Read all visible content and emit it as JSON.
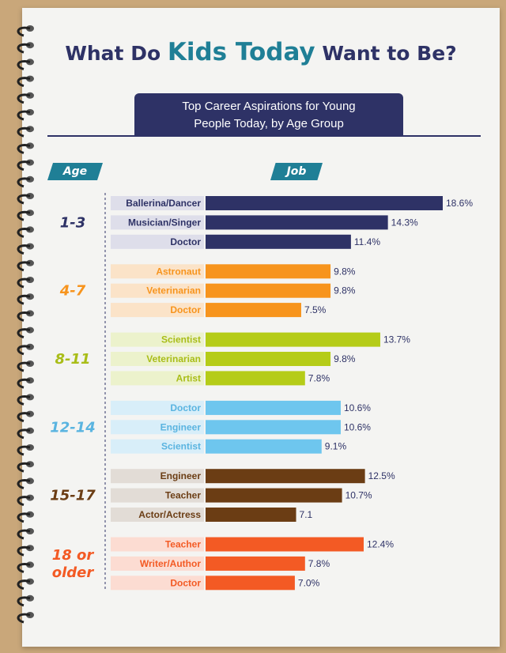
{
  "title": {
    "part1": "What Do ",
    "highlight": "Kids Today",
    "part2": " Want to Be?"
  },
  "subtitle": {
    "line1": "Top Career Aspirations for Young",
    "line2": "People Today, by Age Group"
  },
  "headers": {
    "age": "Age",
    "job": "Job"
  },
  "colors": {
    "navy": "#2e3266",
    "teal": "#1f7f96"
  },
  "chart_data": {
    "type": "bar",
    "orientation": "horizontal",
    "title": "What Do Kids Today Want to Be?",
    "subtitle": "Top Career Aspirations for Young People Today, by Age Group",
    "groups": [
      {
        "age": "1-3",
        "color": "#2e3266",
        "light": "#dedeea",
        "label_color": "#2e3266",
        "items": [
          {
            "job": "Ballerina/Dancer",
            "value": 18.6,
            "label": "18.6%"
          },
          {
            "job": "Musician/Singer",
            "value": 14.3,
            "label": "14.3%"
          },
          {
            "job": "Doctor",
            "value": 11.4,
            "label": "11.4%"
          }
        ]
      },
      {
        "age": "4-7",
        "color": "#f7941d",
        "light": "#fbe3c8",
        "label_color": "#f7941d",
        "items": [
          {
            "job": "Astronaut",
            "value": 9.8,
            "label": "9.8%"
          },
          {
            "job": "Veterinarian",
            "value": 9.8,
            "label": "9.8%"
          },
          {
            "job": "Doctor",
            "value": 7.5,
            "label": "7.5%"
          }
        ]
      },
      {
        "age": "8-11",
        "color": "#b5cc18",
        "light": "#ecf2cc",
        "label_color": "#a9bd18",
        "items": [
          {
            "job": "Scientist",
            "value": 13.7,
            "label": "13.7%"
          },
          {
            "job": "Veterinarian",
            "value": 9.8,
            "label": "9.8%"
          },
          {
            "job": "Artist",
            "value": 7.8,
            "label": "7.8%"
          }
        ]
      },
      {
        "age": "12-14",
        "color": "#6ec6ee",
        "light": "#d8eef9",
        "label_color": "#5ab4e0",
        "items": [
          {
            "job": "Doctor",
            "value": 10.6,
            "label": "10.6%"
          },
          {
            "job": "Engineer",
            "value": 10.6,
            "label": "10.6%"
          },
          {
            "job": "Scientist",
            "value": 9.1,
            "label": "9.1%"
          }
        ]
      },
      {
        "age": "15-17",
        "color": "#6b3d14",
        "light": "#e2dcd6",
        "label_color": "#6b3d14",
        "items": [
          {
            "job": "Engineer",
            "value": 12.5,
            "label": "12.5%"
          },
          {
            "job": "Teacher",
            "value": 10.7,
            "label": "10.7%"
          },
          {
            "job": "Actor/Actress",
            "value": 7.1,
            "label": "7.1"
          }
        ]
      },
      {
        "age": "18 or older",
        "age_lines": [
          "18 or",
          "older"
        ],
        "color": "#f35a24",
        "light": "#fcdcd2",
        "label_color": "#f35a24",
        "items": [
          {
            "job": "Teacher",
            "value": 12.4,
            "label": "12.4%"
          },
          {
            "job": "Writer/Author",
            "value": 7.8,
            "label": "7.8%"
          },
          {
            "job": "Doctor",
            "value": 7.0,
            "label": "7.0%"
          }
        ]
      }
    ],
    "xlim": [
      0,
      18.6
    ]
  }
}
